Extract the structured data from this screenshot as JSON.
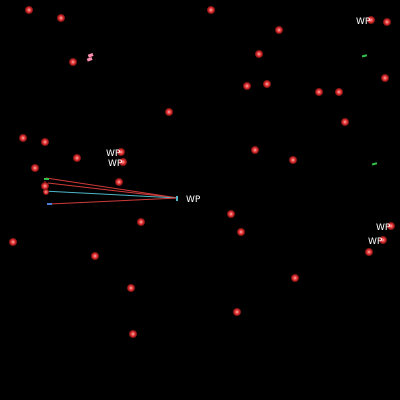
{
  "colors": {
    "background": "#000000",
    "target_fill": "#e02b2b",
    "target_glow": "#ff5a5a",
    "trail_red": "#d03a3a",
    "trail_cyan": "#4fb7c8",
    "agent_pink": "#ff8fb0",
    "agent_green": "#35c24a",
    "agent_blue": "#4a7bd6",
    "label": "#ffffff"
  },
  "icons": {
    "target": "red-dot-icon",
    "agent": "small-agent-icon",
    "waypoint": "waypoint-label"
  },
  "waypoints": [
    {
      "text": "WP"
    },
    {
      "text": "WP"
    },
    {
      "text": "WP"
    },
    {
      "text": "WP"
    },
    {
      "text": "WP"
    },
    {
      "text": "WP"
    }
  ],
  "targets_count_visible": 38
}
